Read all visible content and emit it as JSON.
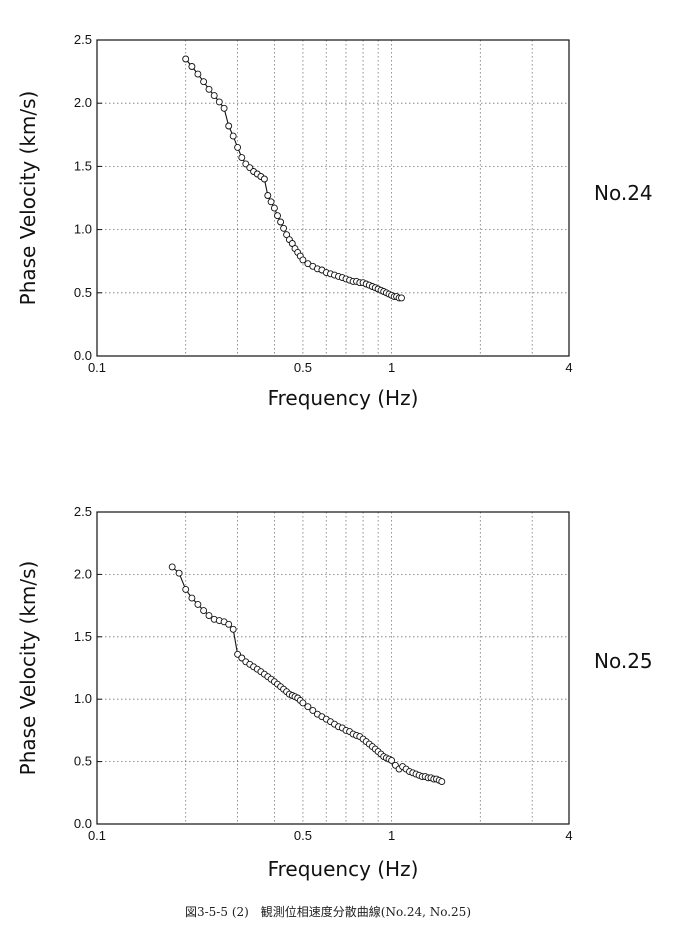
{
  "chart_data": [
    {
      "type": "scatter",
      "station": "No.24",
      "xlabel": "Frequency (Hz)",
      "ylabel": "Phase Velocity (km/s)",
      "x_scale": "log",
      "xlim": [
        0.1,
        4
      ],
      "ylim": [
        0.0,
        2.5
      ],
      "x_tick_labels": [
        "0.1",
        "0.5",
        "1",
        "4"
      ],
      "y_tick_labels": [
        "0.0",
        "0.5",
        "1.0",
        "1.5",
        "2.0",
        "2.5"
      ],
      "grid": true,
      "x": [
        0.2,
        0.21,
        0.22,
        0.23,
        0.24,
        0.25,
        0.26,
        0.27,
        0.28,
        0.29,
        0.3,
        0.31,
        0.32,
        0.33,
        0.34,
        0.35,
        0.36,
        0.37,
        0.38,
        0.39,
        0.4,
        0.41,
        0.42,
        0.43,
        0.44,
        0.45,
        0.46,
        0.47,
        0.48,
        0.49,
        0.5,
        0.52,
        0.54,
        0.56,
        0.58,
        0.6,
        0.62,
        0.64,
        0.66,
        0.68,
        0.7,
        0.72,
        0.74,
        0.76,
        0.78,
        0.8,
        0.82,
        0.84,
        0.86,
        0.88,
        0.9,
        0.92,
        0.94,
        0.96,
        0.98,
        1.0,
        1.02,
        1.04,
        1.06,
        1.08
      ],
      "y": [
        2.35,
        2.29,
        2.23,
        2.17,
        2.11,
        2.06,
        2.01,
        1.96,
        1.82,
        1.74,
        1.65,
        1.57,
        1.52,
        1.49,
        1.46,
        1.44,
        1.42,
        1.4,
        1.27,
        1.22,
        1.17,
        1.11,
        1.06,
        1.01,
        0.96,
        0.92,
        0.89,
        0.85,
        0.82,
        0.79,
        0.76,
        0.73,
        0.71,
        0.69,
        0.68,
        0.66,
        0.65,
        0.64,
        0.63,
        0.62,
        0.61,
        0.6,
        0.59,
        0.59,
        0.58,
        0.58,
        0.57,
        0.56,
        0.55,
        0.54,
        0.53,
        0.52,
        0.51,
        0.5,
        0.49,
        0.48,
        0.47,
        0.47,
        0.46,
        0.46
      ]
    },
    {
      "type": "scatter",
      "station": "No.25",
      "xlabel": "Frequency (Hz)",
      "ylabel": "Phase Velocity (km/s)",
      "x_scale": "log",
      "xlim": [
        0.1,
        4
      ],
      "ylim": [
        0.0,
        2.5
      ],
      "x_tick_labels": [
        "0.1",
        "0.5",
        "1",
        "4"
      ],
      "y_tick_labels": [
        "0.0",
        "0.5",
        "1.0",
        "1.5",
        "2.0",
        "2.5"
      ],
      "grid": true,
      "x": [
        0.18,
        0.19,
        0.2,
        0.21,
        0.22,
        0.23,
        0.24,
        0.25,
        0.26,
        0.27,
        0.28,
        0.29,
        0.3,
        0.31,
        0.32,
        0.33,
        0.34,
        0.35,
        0.36,
        0.37,
        0.38,
        0.39,
        0.4,
        0.41,
        0.42,
        0.43,
        0.44,
        0.45,
        0.46,
        0.47,
        0.48,
        0.49,
        0.5,
        0.52,
        0.54,
        0.56,
        0.58,
        0.6,
        0.62,
        0.64,
        0.66,
        0.68,
        0.7,
        0.72,
        0.74,
        0.76,
        0.78,
        0.8,
        0.82,
        0.84,
        0.86,
        0.88,
        0.9,
        0.92,
        0.94,
        0.96,
        0.98,
        1.0,
        1.03,
        1.06,
        1.09,
        1.12,
        1.15,
        1.18,
        1.21,
        1.24,
        1.27,
        1.3,
        1.33,
        1.36,
        1.39,
        1.42,
        1.45,
        1.48
      ],
      "y": [
        2.06,
        2.01,
        1.88,
        1.81,
        1.76,
        1.71,
        1.67,
        1.64,
        1.63,
        1.62,
        1.6,
        1.56,
        1.36,
        1.33,
        1.3,
        1.28,
        1.26,
        1.24,
        1.22,
        1.2,
        1.18,
        1.16,
        1.14,
        1.12,
        1.1,
        1.08,
        1.06,
        1.04,
        1.03,
        1.02,
        1.01,
        0.99,
        0.97,
        0.94,
        0.91,
        0.88,
        0.86,
        0.84,
        0.82,
        0.8,
        0.78,
        0.77,
        0.75,
        0.74,
        0.72,
        0.71,
        0.7,
        0.68,
        0.66,
        0.64,
        0.62,
        0.6,
        0.58,
        0.56,
        0.54,
        0.53,
        0.52,
        0.51,
        0.47,
        0.44,
        0.46,
        0.44,
        0.42,
        0.41,
        0.4,
        0.39,
        0.38,
        0.38,
        0.37,
        0.37,
        0.36,
        0.36,
        0.35,
        0.34
      ]
    }
  ],
  "caption": "図3-5-5 (2)　観測位相速度分散曲線(No.24, No.25)"
}
